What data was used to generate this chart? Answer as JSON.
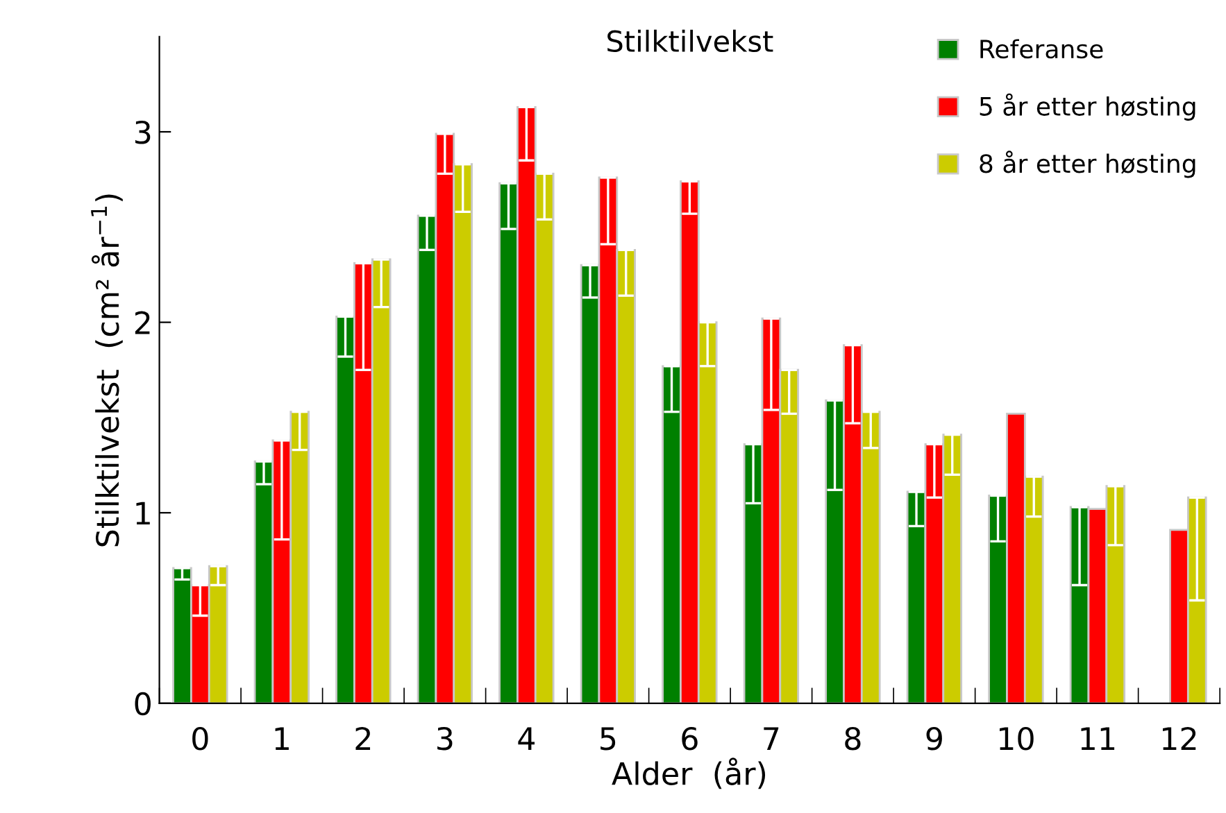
{
  "chart_data": {
    "type": "bar",
    "title": "Stilktilvekst",
    "xlabel": "Alder  (år)",
    "ylabel": "Stilktilvekst  (cm² år$^{−1}$)",
    "categories": [
      "0",
      "1",
      "2",
      "3",
      "4",
      "5",
      "6",
      "7",
      "8",
      "9",
      "10",
      "11",
      "12"
    ],
    "series": [
      {
        "name": "Referanse",
        "color": "#008000",
        "values": [
          0.71,
          1.27,
          2.03,
          2.56,
          2.73,
          2.3,
          1.77,
          1.36,
          1.59,
          1.11,
          1.09,
          1.03,
          null
        ],
        "errors": [
          [
            0.65,
            0.71
          ],
          [
            1.15,
            1.27
          ],
          [
            1.82,
            2.03
          ],
          [
            2.38,
            2.56
          ],
          [
            2.49,
            2.73
          ],
          [
            2.13,
            2.3
          ],
          [
            1.53,
            1.77
          ],
          [
            1.05,
            1.36
          ],
          [
            1.12,
            1.59
          ],
          [
            0.93,
            1.11
          ],
          [
            0.85,
            1.09
          ],
          [
            0.62,
            1.03
          ],
          null
        ]
      },
      {
        "name": "5 år etter høsting",
        "color": "#ff0000",
        "values": [
          0.62,
          1.38,
          2.31,
          2.99,
          3.13,
          2.76,
          2.74,
          2.02,
          1.88,
          1.36,
          1.52,
          1.02,
          0.91
        ],
        "errors": [
          [
            0.46,
            0.62
          ],
          [
            0.86,
            1.38
          ],
          [
            1.75,
            2.31
          ],
          [
            2.78,
            2.99
          ],
          [
            2.85,
            3.13
          ],
          [
            2.41,
            2.76
          ],
          [
            2.57,
            2.74
          ],
          [
            1.54,
            2.02
          ],
          [
            1.47,
            1.88
          ],
          [
            1.08,
            1.36
          ],
          null,
          null,
          null
        ]
      },
      {
        "name": "8 år etter høsting",
        "color": "#cccc00",
        "values": [
          0.72,
          1.53,
          2.33,
          2.83,
          2.78,
          2.38,
          2.0,
          1.75,
          1.53,
          1.41,
          1.19,
          1.14,
          1.08
        ],
        "errors": [
          [
            0.62,
            0.72
          ],
          [
            1.33,
            1.53
          ],
          [
            2.08,
            2.33
          ],
          [
            2.58,
            2.83
          ],
          [
            2.54,
            2.78
          ],
          [
            2.14,
            2.38
          ],
          [
            1.77,
            2.0
          ],
          [
            1.52,
            1.75
          ],
          [
            1.34,
            1.53
          ],
          [
            1.2,
            1.41
          ],
          [
            0.98,
            1.19
          ],
          [
            0.83,
            1.14
          ],
          [
            0.54,
            1.08
          ]
        ]
      }
    ],
    "ylim": [
      0,
      3.5
    ],
    "yticks": [
      0,
      1,
      2,
      3
    ],
    "grid": false,
    "legend": "top right"
  }
}
